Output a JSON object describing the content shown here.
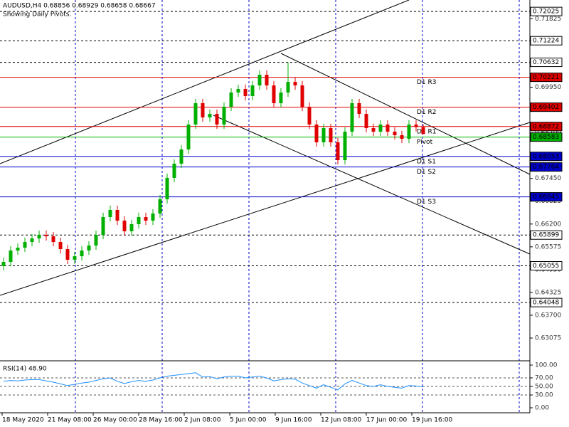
{
  "chart_data": {
    "type": "candlestick",
    "title": "AUDUSD,H4  0.68856 0.68929 0.68658 0.68667",
    "subtitle": "Showing Daily Pivots.",
    "x_labels": [
      "18 May 2020",
      "21 May 08:00",
      "26 May 00:00",
      "28 May 16:00",
      "2 Jun 08:00",
      "5 Jun 00:00",
      "9 Jun 16:00",
      "12 Jun 08:00",
      "17 Jun 00:00",
      "19 Jun 16:00"
    ],
    "up_color": "#00b000",
    "down_color": "#e00000",
    "open": [
      0.6505,
      0.65162,
      0.65474,
      0.65552,
      0.65708,
      0.65806,
      0.65903,
      0.65864,
      0.65708,
      0.65513,
      0.65221,
      0.65318,
      0.65474,
      0.65611,
      0.65903,
      0.66391,
      0.66586,
      0.66293,
      0.66001,
      0.66196,
      0.66391,
      0.66293,
      0.66488,
      0.66879,
      0.67464,
      0.67854,
      0.68244,
      0.68927,
      0.69512,
      0.69122,
      0.69219,
      0.68927,
      0.69414,
      0.69804,
      0.69902,
      0.69707,
      0.69999,
      0.70292,
      0.69999,
      0.69512,
      0.69804,
      0.70097,
      0.69999,
      0.69414,
      0.68927,
      0.68439,
      0.68829,
      0.68439,
      0.67951,
      0.68732,
      0.69512,
      0.69219,
      0.68829,
      0.68732,
      0.68927,
      0.68732,
      0.68634,
      0.68537,
      0.68927,
      0.68856
    ],
    "high": [
      0.65282,
      0.65594,
      0.65672,
      0.65828,
      0.65926,
      0.66023,
      0.66023,
      0.65984,
      0.65828,
      0.65633,
      0.65438,
      0.65594,
      0.65731,
      0.66023,
      0.66511,
      0.66706,
      0.66706,
      0.66413,
      0.66316,
      0.66511,
      0.66511,
      0.66608,
      0.66999,
      0.67584,
      0.67974,
      0.68364,
      0.69047,
      0.69632,
      0.69632,
      0.69339,
      0.69339,
      0.69534,
      0.69924,
      0.70022,
      0.70022,
      0.70119,
      0.70412,
      0.70412,
      0.70119,
      0.69924,
      0.70632,
      0.70217,
      0.70119,
      0.69534,
      0.69047,
      0.68949,
      0.68949,
      0.68559,
      0.68852,
      0.69632,
      0.69632,
      0.69339,
      0.68949,
      0.69047,
      0.69047,
      0.68852,
      0.68754,
      0.69047,
      0.69047,
      0.68929
    ],
    "low": [
      0.6493,
      0.65042,
      0.65354,
      0.65432,
      0.65588,
      0.65686,
      0.65744,
      0.65588,
      0.65393,
      0.65101,
      0.65101,
      0.65198,
      0.65354,
      0.65491,
      0.65783,
      0.66271,
      0.66173,
      0.65881,
      0.65881,
      0.66076,
      0.66173,
      0.66173,
      0.66368,
      0.66759,
      0.67344,
      0.67734,
      0.68124,
      0.68807,
      0.69002,
      0.69002,
      0.68807,
      0.68807,
      0.69294,
      0.69684,
      0.69587,
      0.69587,
      0.69879,
      0.69879,
      0.69392,
      0.69392,
      0.69684,
      0.69879,
      0.69294,
      0.68807,
      0.68319,
      0.68319,
      0.68319,
      0.67831,
      0.67831,
      0.68612,
      0.69099,
      0.68709,
      0.68612,
      0.68612,
      0.68612,
      0.68514,
      0.68417,
      0.68417,
      0.68736,
      0.68658
    ],
    "close": [
      0.65162,
      0.65474,
      0.65552,
      0.65708,
      0.65806,
      0.65903,
      0.65864,
      0.65708,
      0.65513,
      0.65221,
      0.65318,
      0.65474,
      0.65611,
      0.65903,
      0.66391,
      0.66586,
      0.66293,
      0.66001,
      0.66196,
      0.66391,
      0.66293,
      0.66488,
      0.66879,
      0.67464,
      0.67854,
      0.68244,
      0.68927,
      0.69512,
      0.69122,
      0.69219,
      0.68927,
      0.69414,
      0.69804,
      0.69902,
      0.69707,
      0.69999,
      0.70292,
      0.69999,
      0.69512,
      0.69804,
      0.70097,
      0.69999,
      0.69414,
      0.68927,
      0.68439,
      0.68829,
      0.68439,
      0.67951,
      0.68732,
      0.69512,
      0.69219,
      0.68829,
      0.68732,
      0.68927,
      0.68732,
      0.68634,
      0.68537,
      0.68927,
      0.68856,
      0.68667
    ],
    "ylim": [
      0.6249,
      0.7234
    ],
    "yticks": [
      0.71825,
      {
        "value": 0.712,
        "label": "0.71200"
      },
      0.70575,
      {
        "value": 0.6995,
        "label": "0.69950"
      },
      0.69325,
      {
        "value": 0.687,
        "label": "0.68700"
      },
      0.68075,
      {
        "value": 0.6745,
        "label": "0.67450"
      },
      0.66825,
      {
        "value": 0.662,
        "label": "0.66200"
      },
      0.65575,
      {
        "value": 0.6495,
        "label": "0.64950"
      },
      0.64325,
      {
        "value": 0.637,
        "label": "0.63700"
      },
      0.63075
    ],
    "levels": [
      0.72025,
      0.71224,
      0.70632,
      0.65899,
      0.65055,
      0.64048
    ],
    "pivots": [
      {
        "name": "D1 R3",
        "value": 0.70221,
        "color": "#e00000"
      },
      {
        "name": "D1 R2",
        "value": 0.69402,
        "color": "#e00000"
      },
      {
        "name": "D1 R1",
        "value": 0.68872,
        "color": "#e00000"
      },
      {
        "name": "Pivot",
        "value": 0.68583,
        "color": "#00b000"
      },
      {
        "name": "D1 S1",
        "value": 0.68053,
        "color": "#0000cc"
      },
      {
        "name": "D1 S2",
        "value": 0.67764,
        "color": "#0000cc"
      },
      {
        "name": "D1 S3",
        "value": 0.66945,
        "color": "#0000cc"
      }
    ],
    "rsi": {
      "title": "RSI(14) 48.90",
      "color": "#1e90ff",
      "values": [
        62,
        64,
        63,
        65,
        66,
        66,
        63,
        60,
        56,
        52,
        55,
        58,
        60,
        64,
        68,
        70,
        62,
        57,
        61,
        64,
        62,
        65,
        70,
        74,
        76,
        78,
        80,
        82,
        72,
        73,
        68,
        72,
        74,
        74,
        70,
        72,
        74,
        70,
        63,
        66,
        68,
        67,
        58,
        52,
        46,
        54,
        48,
        42,
        56,
        64,
        58,
        52,
        50,
        54,
        50,
        48,
        46,
        52,
        51,
        48.9
      ],
      "ylim": [
        0,
        100
      ],
      "yticks": [
        {
          "value": 100,
          "label": "100.00"
        },
        {
          "value": 70,
          "label": "70.00"
        },
        {
          "value": 50,
          "label": "50.00"
        },
        {
          "value": 30,
          "label": "30.00"
        },
        {
          "value": 0,
          "label": "0.00"
        }
      ]
    }
  }
}
